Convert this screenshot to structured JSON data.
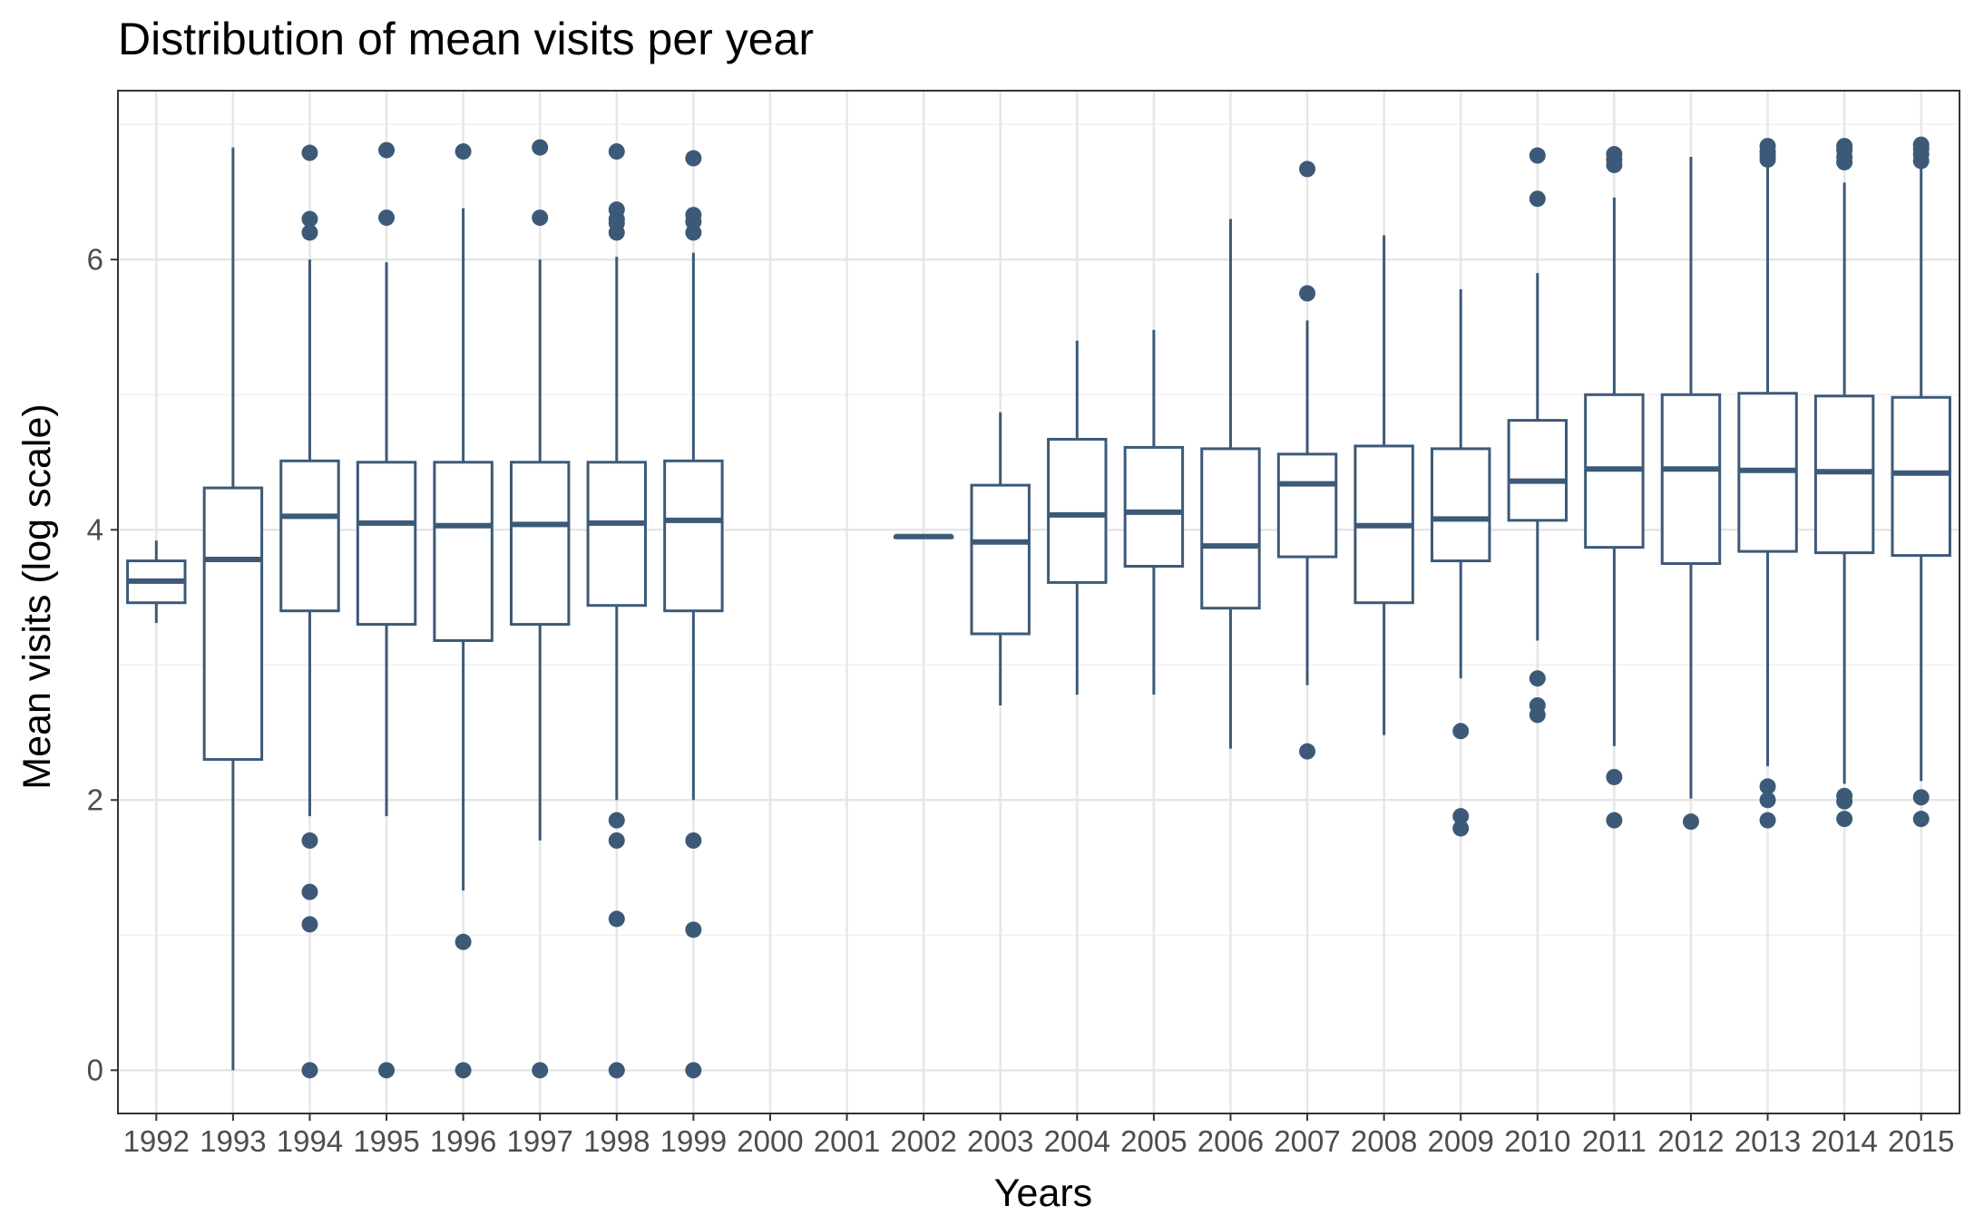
{
  "chart_data": {
    "type": "boxplot",
    "title": "Distribution of mean visits per year",
    "xlabel": "Years",
    "ylabel": "Mean visits (log scale)",
    "ylim": [
      -0.32,
      7.25
    ],
    "y_ticks": [
      0,
      2,
      4,
      6
    ],
    "grid": true,
    "categories": [
      "1992",
      "1993",
      "1994",
      "1995",
      "1996",
      "1997",
      "1998",
      "1999",
      "2000",
      "2001",
      "2002",
      "2003",
      "2004",
      "2005",
      "2006",
      "2007",
      "2008",
      "2009",
      "2010",
      "2011",
      "2012",
      "2013",
      "2014",
      "2015"
    ],
    "boxes": [
      {
        "x": "1992",
        "min": 3.31,
        "q1": 3.46,
        "median": 3.62,
        "q3": 3.77,
        "max": 3.92,
        "outliers": []
      },
      {
        "x": "1993",
        "min": 0.0,
        "q1": 2.3,
        "median": 3.78,
        "q3": 4.31,
        "max": 6.83,
        "outliers": []
      },
      {
        "x": "1994",
        "min": 1.88,
        "q1": 3.4,
        "median": 4.1,
        "q3": 4.51,
        "max": 6.0,
        "outliers": [
          6.79,
          6.3,
          6.2,
          1.7,
          1.32,
          1.08,
          0.0
        ]
      },
      {
        "x": "1995",
        "min": 1.88,
        "q1": 3.3,
        "median": 4.05,
        "q3": 4.5,
        "max": 5.98,
        "outliers": [
          6.81,
          6.31,
          0.0
        ]
      },
      {
        "x": "1996",
        "min": 1.33,
        "q1": 3.18,
        "median": 4.03,
        "q3": 4.5,
        "max": 6.38,
        "outliers": [
          6.8,
          0.95,
          0.0
        ]
      },
      {
        "x": "1997",
        "min": 1.7,
        "q1": 3.3,
        "median": 4.04,
        "q3": 4.5,
        "max": 6.0,
        "outliers": [
          6.83,
          6.31,
          0.0
        ]
      },
      {
        "x": "1998",
        "min": 2.0,
        "q1": 3.44,
        "median": 4.05,
        "q3": 4.5,
        "max": 6.02,
        "outliers": [
          6.8,
          6.37,
          6.3,
          6.27,
          6.2,
          1.85,
          1.7,
          1.12,
          0.0
        ]
      },
      {
        "x": "1999",
        "min": 2.0,
        "q1": 3.4,
        "median": 4.07,
        "q3": 4.51,
        "max": 6.05,
        "outliers": [
          6.75,
          6.33,
          6.28,
          6.2,
          1.7,
          1.04,
          0.0
        ]
      },
      {
        "x": "2002",
        "min": 3.95,
        "q1": 3.95,
        "median": 3.95,
        "q3": 3.95,
        "max": 3.95,
        "outliers": []
      },
      {
        "x": "2003",
        "min": 2.7,
        "q1": 3.23,
        "median": 3.91,
        "q3": 4.33,
        "max": 4.87,
        "outliers": []
      },
      {
        "x": "2004",
        "min": 2.78,
        "q1": 3.61,
        "median": 4.11,
        "q3": 4.67,
        "max": 5.4,
        "outliers": []
      },
      {
        "x": "2005",
        "min": 2.78,
        "q1": 3.73,
        "median": 4.13,
        "q3": 4.61,
        "max": 5.48,
        "outliers": []
      },
      {
        "x": "2006",
        "min": 2.38,
        "q1": 3.42,
        "median": 3.88,
        "q3": 4.6,
        "max": 6.3,
        "outliers": []
      },
      {
        "x": "2007",
        "min": 2.85,
        "q1": 3.8,
        "median": 4.34,
        "q3": 4.56,
        "max": 5.55,
        "outliers": [
          6.67,
          5.75,
          2.36
        ]
      },
      {
        "x": "2008",
        "min": 2.48,
        "q1": 3.46,
        "median": 4.03,
        "q3": 4.62,
        "max": 6.18,
        "outliers": []
      },
      {
        "x": "2009",
        "min": 2.9,
        "q1": 3.77,
        "median": 4.08,
        "q3": 4.6,
        "max": 5.78,
        "outliers": [
          2.51,
          1.88,
          1.79
        ]
      },
      {
        "x": "2010",
        "min": 3.18,
        "q1": 4.07,
        "median": 4.36,
        "q3": 4.81,
        "max": 5.9,
        "outliers": [
          6.77,
          6.45,
          2.9,
          2.7,
          2.63
        ]
      },
      {
        "x": "2011",
        "min": 2.4,
        "q1": 3.87,
        "median": 4.45,
        "q3": 5.0,
        "max": 6.46,
        "outliers": [
          6.78,
          6.74,
          6.7,
          2.17,
          1.85
        ]
      },
      {
        "x": "2012",
        "min": 2.01,
        "q1": 3.75,
        "median": 4.45,
        "q3": 5.0,
        "max": 6.76,
        "outliers": [
          1.84
        ]
      },
      {
        "x": "2013",
        "min": 2.25,
        "q1": 3.84,
        "median": 4.44,
        "q3": 5.01,
        "max": 6.72,
        "outliers": [
          6.84,
          6.8,
          6.77,
          6.74,
          2.1,
          2.0,
          1.85
        ]
      },
      {
        "x": "2014",
        "min": 2.12,
        "q1": 3.83,
        "median": 4.43,
        "q3": 4.99,
        "max": 6.57,
        "outliers": [
          6.84,
          6.81,
          6.76,
          6.72,
          2.03,
          1.99,
          1.86
        ]
      },
      {
        "x": "2015",
        "min": 2.14,
        "q1": 3.81,
        "median": 4.42,
        "q3": 4.98,
        "max": 6.68,
        "outliers": [
          6.85,
          6.82,
          6.78,
          6.73,
          2.02,
          1.86
        ]
      }
    ],
    "colors": {
      "box": "#3c5a78",
      "panel_border": "#333333",
      "grid_major": "#e6e6e6",
      "grid_minor": "#f0f0f0",
      "background": "#ffffff"
    }
  }
}
